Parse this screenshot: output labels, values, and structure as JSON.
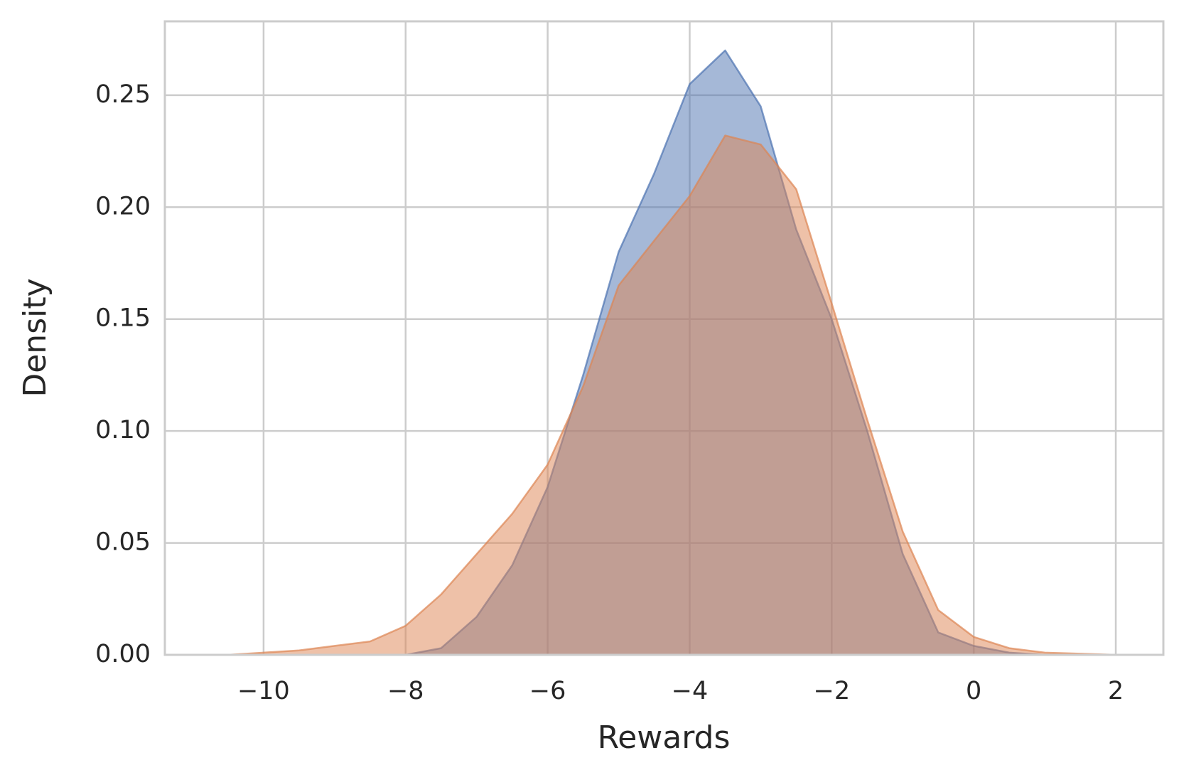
{
  "chart_data": {
    "type": "area",
    "xlabel": "Rewards",
    "ylabel": "Density",
    "xlim": [
      -11.39,
      2.67
    ],
    "ylim": [
      0,
      0.283
    ],
    "xticks": [
      {
        "value": -10,
        "label": "−10"
      },
      {
        "value": -8,
        "label": "−8"
      },
      {
        "value": -6,
        "label": "−6"
      },
      {
        "value": -4,
        "label": "−4"
      },
      {
        "value": -2,
        "label": "−2"
      },
      0,
      2
    ],
    "yticks": [
      {
        "value": 0,
        "label": "0.00"
      },
      0.05,
      {
        "value": 0.1,
        "label": "0.10"
      },
      0.15,
      {
        "value": 0.2,
        "label": "0.20"
      },
      0.25
    ],
    "grid": true,
    "series": [
      {
        "color": "#4c72b0",
        "x": [
          -8,
          -7.5,
          -7,
          -6.5,
          -6,
          -5.5,
          -5,
          -4.5,
          -4,
          -3.5,
          -3,
          -2.5,
          -2,
          -1.5,
          -1,
          -0.5,
          0,
          0.5,
          1
        ],
        "values": [
          0,
          0.003,
          0.017,
          0.04,
          0.075,
          0.125,
          0.18,
          0.215,
          0.255,
          0.27,
          0.245,
          0.19,
          0.15,
          0.1,
          0.045,
          0.01,
          0.004,
          0.001,
          0
        ]
      },
      {
        "color": "#dd8452",
        "x": [
          -10.5,
          -10,
          -9.5,
          -9,
          -8.5,
          -8,
          -7.5,
          -7,
          -6.5,
          -6,
          -5.5,
          -5,
          -4.5,
          -4,
          -3.5,
          -3,
          -2.5,
          -2,
          -1.5,
          -1,
          -0.5,
          0,
          0.5,
          1,
          1.5,
          2
        ],
        "values": [
          0,
          0.001,
          0.002,
          0.004,
          0.006,
          0.013,
          0.027,
          0.045,
          0.063,
          0.085,
          0.12,
          0.165,
          0.185,
          0.205,
          0.232,
          0.228,
          0.208,
          0.157,
          0.105,
          0.055,
          0.02,
          0.008,
          0.003,
          0.001,
          0.0005,
          0
        ]
      }
    ]
  }
}
